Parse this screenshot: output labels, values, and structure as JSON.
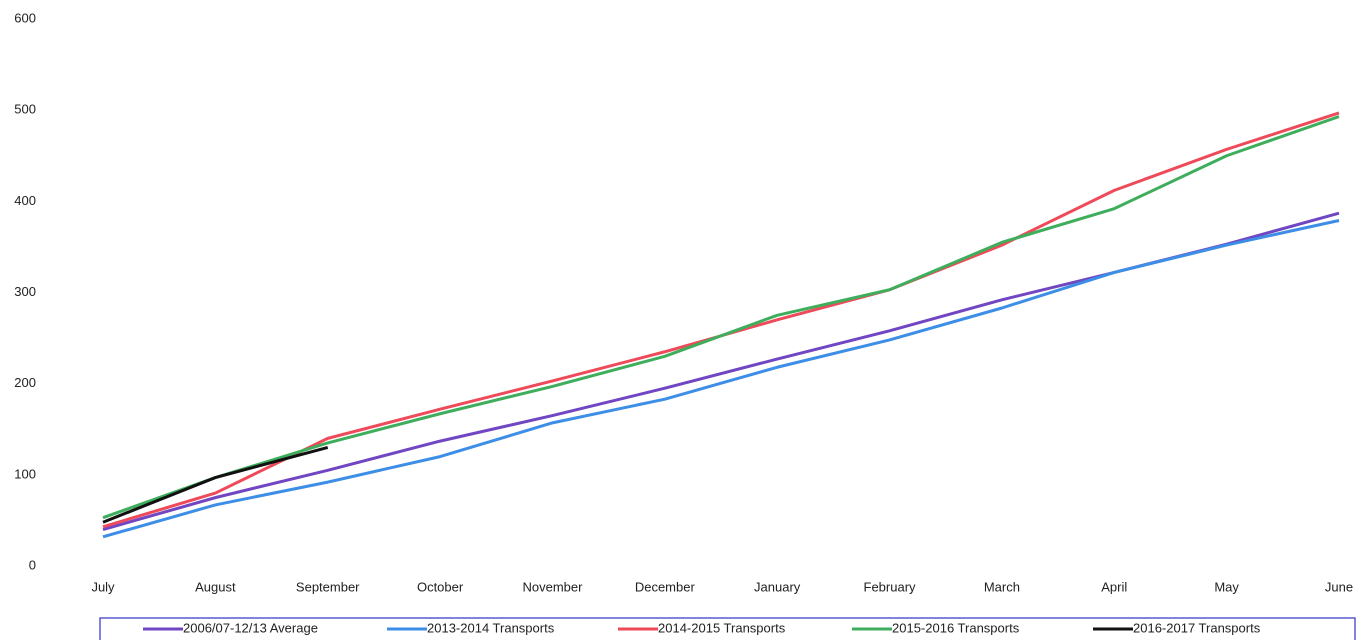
{
  "chart_data": {
    "type": "line",
    "categories": [
      "July",
      "August",
      "September",
      "October",
      "November",
      "December",
      "January",
      "February",
      "March",
      "April",
      "May",
      "June"
    ],
    "series": [
      {
        "name": "2006/07-12/13 Average",
        "color": "#7046c2",
        "values": [
          40,
          75,
          105,
          137,
          165,
          195,
          227,
          258,
          292,
          322,
          353,
          387
        ]
      },
      {
        "name": "2013-2014 Transports",
        "color": "#3d8ee6",
        "values": [
          32,
          67,
          92,
          120,
          157,
          183,
          218,
          248,
          283,
          322,
          352,
          379
        ]
      },
      {
        "name": "2014-2015 Transports",
        "color": "#ee4a5a",
        "values": [
          43,
          80,
          140,
          172,
          203,
          235,
          270,
          303,
          352,
          412,
          457,
          497
        ]
      },
      {
        "name": "2015-2016 Transports",
        "color": "#3fae5c",
        "values": [
          53,
          97,
          135,
          167,
          197,
          230,
          275,
          303,
          355,
          392,
          450,
          493
        ]
      },
      {
        "name": "2016-2017 Transports",
        "color": "#111111",
        "values": [
          48,
          97,
          130,
          null,
          null,
          null,
          null,
          null,
          null,
          null,
          null,
          null
        ]
      }
    ],
    "ylim": [
      0,
      600
    ],
    "yticks": [
      0,
      100,
      200,
      300,
      400,
      500,
      600
    ],
    "grid": false
  }
}
